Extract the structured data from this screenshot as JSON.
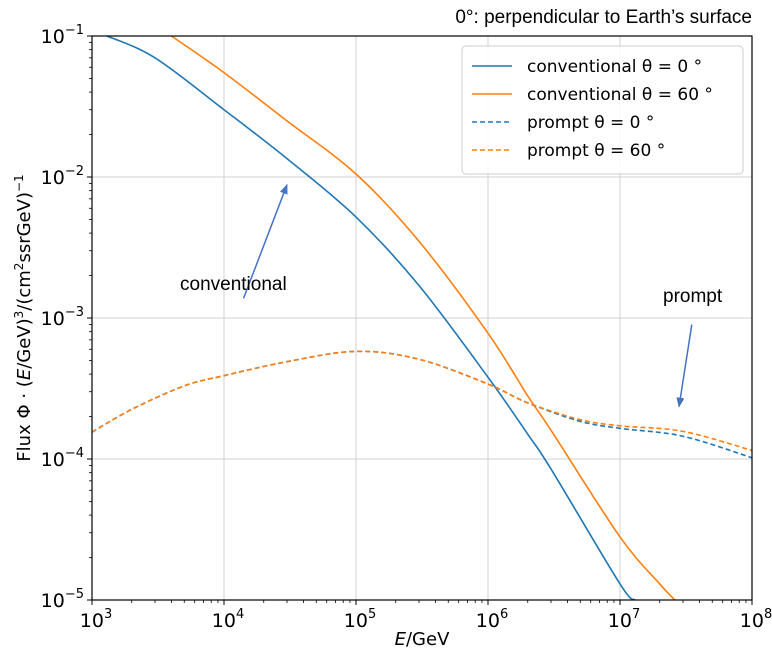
{
  "note": "0°: perpendicular to Earth’s surface",
  "chart_data": {
    "type": "line",
    "xscale": "log",
    "yscale": "log",
    "xlim": [
      1000,
      100000000
    ],
    "ylim": [
      1e-05,
      0.1
    ],
    "grid": true,
    "legend_position": "top-right",
    "xlabel": {
      "italic": "E",
      "rest": "/GeV"
    },
    "ylabel": {
      "pre": "Flux Φ · (",
      "italic": "E",
      "mid": "/GeV)",
      "sup1": "3",
      "post": "/(cm",
      "sup2": "2",
      "post2": "ssrGeV)",
      "sup3": "−1"
    },
    "x_ticks": [
      {
        "value": 1000,
        "base": "10",
        "exp": "3"
      },
      {
        "value": 10000,
        "base": "10",
        "exp": "4"
      },
      {
        "value": 100000,
        "base": "10",
        "exp": "5"
      },
      {
        "value": 1000000,
        "base": "10",
        "exp": "6"
      },
      {
        "value": 10000000,
        "base": "10",
        "exp": "7"
      },
      {
        "value": 100000000,
        "base": "10",
        "exp": "8"
      }
    ],
    "y_ticks": [
      {
        "value": 0.1,
        "base": "10",
        "exp": "−1"
      },
      {
        "value": 0.01,
        "base": "10",
        "exp": "−2"
      },
      {
        "value": 0.001,
        "base": "10",
        "exp": "−3"
      },
      {
        "value": 0.0001,
        "base": "10",
        "exp": "−4"
      },
      {
        "value": 1e-05,
        "base": "10",
        "exp": "−5"
      }
    ],
    "series": [
      {
        "name": "conventional θ = 0 °",
        "color": "#1f77b4",
        "dash": false,
        "x": [
          1300,
          3000,
          10000,
          30000,
          100000,
          300000,
          1000000,
          2000000,
          3000000,
          10000000,
          13000000
        ],
        "y": [
          0.1,
          0.07,
          0.03,
          0.0135,
          0.0052,
          0.0017,
          0.00038,
          0.00015,
          8.5e-05,
          1.3e-05,
          1e-05
        ]
      },
      {
        "name": "conventional θ = 60 °",
        "color": "#ff7f0e",
        "dash": false,
        "x": [
          4000,
          10000,
          30000,
          100000,
          300000,
          1000000,
          2000000,
          3000000,
          10000000,
          20000000,
          26000000
        ],
        "y": [
          0.1,
          0.055,
          0.025,
          0.0105,
          0.0035,
          0.00078,
          0.00028,
          0.00016,
          2.8e-05,
          1.3e-05,
          1e-05
        ]
      },
      {
        "name": "prompt θ = 0 °",
        "color": "#1f77b4",
        "dash": true,
        "x": [
          1000,
          2000,
          5000,
          10000,
          30000,
          100000,
          300000,
          1000000,
          2000000,
          5000000,
          10000000,
          30000000,
          100000000
        ],
        "y": [
          0.000155,
          0.000225,
          0.00033,
          0.00039,
          0.00049,
          0.00058,
          0.00051,
          0.00034,
          0.00025,
          0.000185,
          0.000165,
          0.000145,
          0.000102
        ]
      },
      {
        "name": "prompt θ = 60 °",
        "color": "#ff7f0e",
        "dash": true,
        "x": [
          1000,
          2000,
          5000,
          10000,
          30000,
          100000,
          300000,
          1000000,
          2000000,
          5000000,
          10000000,
          30000000,
          100000000
        ],
        "y": [
          0.000155,
          0.000225,
          0.00033,
          0.00039,
          0.00049,
          0.00058,
          0.00051,
          0.00034,
          0.00025,
          0.00019,
          0.000172,
          0.000157,
          0.000115
        ]
      }
    ],
    "annotations": [
      {
        "text": "conventional",
        "arrow_from": [
          25000,
          0.0014
        ],
        "arrow_to": [
          30000,
          0.0088
        ]
      },
      {
        "text": "prompt",
        "arrow_from": [
          35000000,
          0.0009
        ],
        "arrow_to": [
          28000000,
          0.000235
        ]
      }
    ]
  }
}
